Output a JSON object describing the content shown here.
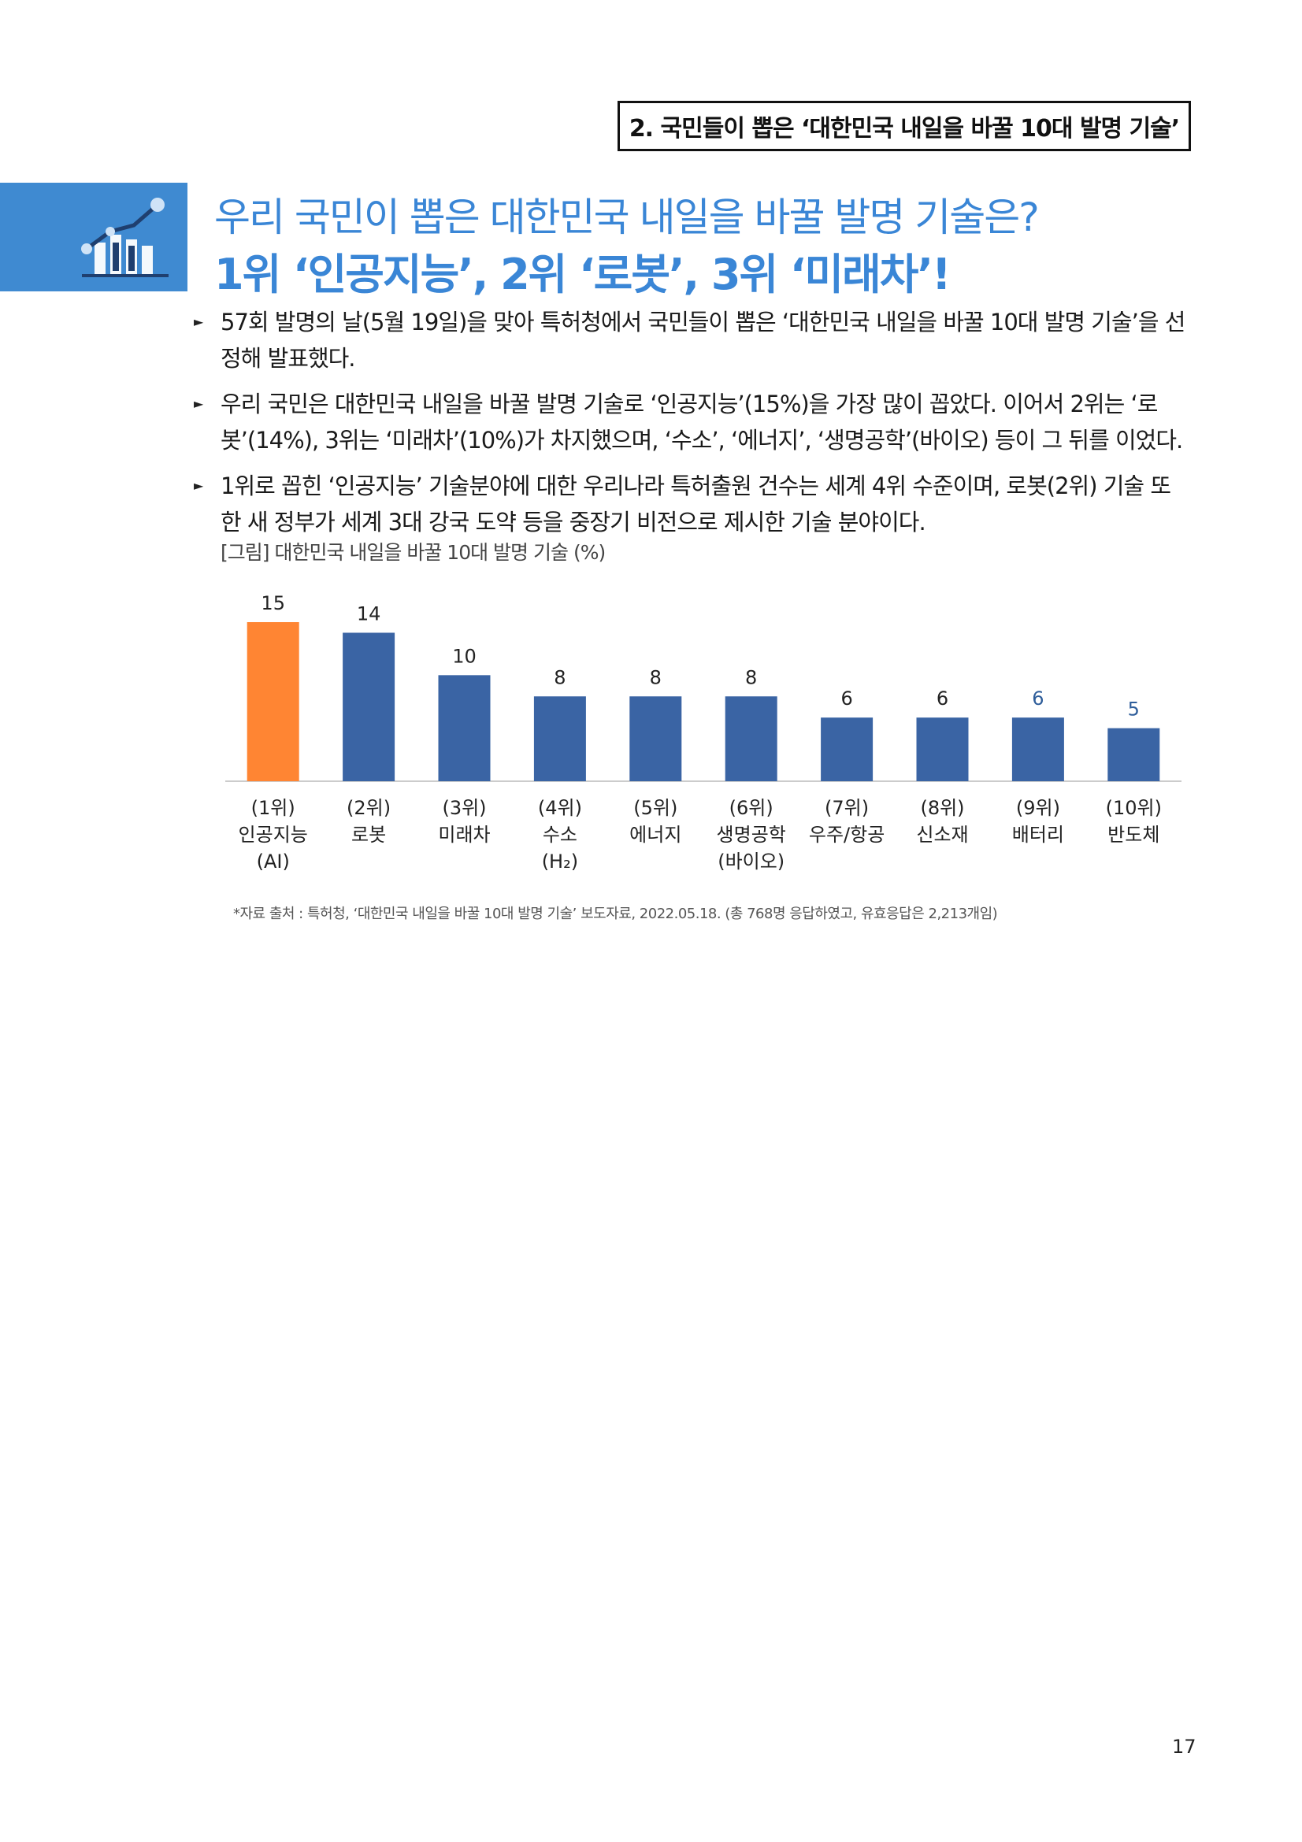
{
  "section_label": "2. 국민들이 뽑은 ‘대한민국 내일을 바꿀 10대 발명 기술’",
  "heading": {
    "question": "우리 국민이 뽑은 대한민국 내일을 바꿀 발명 기술은?",
    "answer": "1위 ‘인공지능’, 2위 ‘로봇’, 3위 ‘미래차’!"
  },
  "bullets": [
    "57회 발명의 날(5월 19일)을 맞아 특허청에서 국민들이 뽑은 ‘대한민국 내일을 바꿀 10대 발명 기술’을 선정해 발표했다.",
    "우리 국민은 대한민국 내일을 바꿀 발명 기술로 ‘인공지능’(15%)을 가장 많이 꼽았다. 이어서 2위는 ‘로봇’(14%), 3위는 ‘미래차’(10%)가 차지했으며, ‘수소’, ‘에너지’, ‘생명공학’(바이오) 등이 그 뒤를 이었다.",
    "1위로 꼽힌 ‘인공지능’ 기술분야에 대한 우리나라 특허출원 건수는 세계 4위 수준이며, 로봇(2위) 기술 또한 새 정부가 세계 3대 강국 도약 등을 중장기 비전으로 제시한 기술 분야이다."
  ],
  "figure_caption": "[그림] 대한민국 내일을 바꿀 10대 발명 기술 (%)",
  "chart_data": {
    "type": "bar",
    "ranks": [
      "(1위)",
      "(2위)",
      "(3위)",
      "(4위)",
      "(5위)",
      "(6위)",
      "(7위)",
      "(8위)",
      "(9위)",
      "(10위)"
    ],
    "categories": [
      "인공지능",
      "로봇",
      "미래차",
      "수소",
      "에너지",
      "생명공학",
      "우주/항공",
      "신소재",
      "배터리",
      "반도체"
    ],
    "sublabels": [
      "(AI)",
      "",
      "",
      "(H₂)",
      "",
      "(바이오)",
      "",
      "",
      "",
      ""
    ],
    "values": [
      15,
      14,
      10,
      8,
      8,
      8,
      6,
      6,
      6,
      5
    ],
    "value_labels": [
      "15",
      "14",
      "10",
      "8",
      "8",
      "8",
      "6",
      "6",
      "6",
      "5"
    ],
    "highlight_index": 0,
    "colors": {
      "highlight": "#ff8533",
      "bar": "#3a64a4",
      "label_blue": "#2e5d9a",
      "label": "#222222"
    },
    "grid": false,
    "legend": "none"
  },
  "source_note": "*자료 출처 : 특허청, ‘대한민국 내일을 바꿀 10대 발명 기술’ 보도자료, 2022.05.18. (총 768명 응답하였고, 유효응답은 2,213개임)",
  "page_number": "17",
  "icon_name": "chart-growth-icon"
}
